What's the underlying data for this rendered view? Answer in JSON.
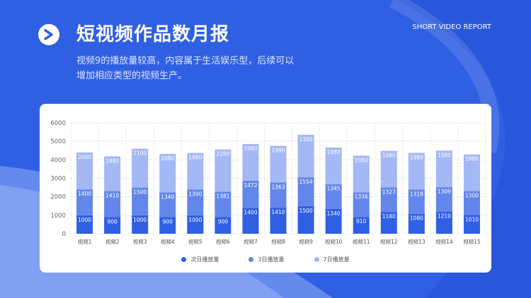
{
  "header": {
    "title": "短视频作品数月报",
    "subtitle_en": "SHORT VIDEO REPORT",
    "description_line1": "视频9的播放量较高，内容属于生活娱乐型，后续可以",
    "description_line2": "增加相应类型的视频生产。"
  },
  "icons": {
    "logo": "play-arrow-icon"
  },
  "colors": {
    "background": "#2f5fe3",
    "series_day1": "#2f5fe3",
    "series_day3": "#6386ea",
    "series_day7": "#a3b8f4"
  },
  "chart_data": {
    "type": "bar",
    "stacked": true,
    "categories": [
      "视频1",
      "视频2",
      "视频3",
      "视频4",
      "视频5",
      "视频6",
      "视频7",
      "视频8",
      "视频9",
      "视频10",
      "视频11",
      "视频12",
      "视频13",
      "视频14",
      "视频15"
    ],
    "series": [
      {
        "name": "次日播放量",
        "color": "#2f5fe3",
        "values": [
          1000,
          900,
          1000,
          900,
          1000,
          900,
          1400,
          1410,
          1500,
          1340,
          910,
          1180,
          1080,
          1210,
          1010
        ]
      },
      {
        "name": "3日播放量",
        "color": "#6386ea",
        "values": [
          1400,
          1410,
          1500,
          1340,
          1390,
          1381,
          1472,
          1363,
          1554,
          1345,
          1336,
          1327,
          1318,
          1309,
          1300
        ]
      },
      {
        "name": "7日播放量",
        "color": "#a3b8f4",
        "values": [
          2000,
          1880,
          2100,
          2080,
          1980,
          2280,
          1980,
          1980,
          2300,
          1980,
          1980,
          1980,
          1980,
          1980,
          1980
        ]
      }
    ],
    "yticks": [
      "0",
      "1000",
      "2000",
      "3000",
      "4000",
      "5000",
      "6000"
    ],
    "ylim": [
      0,
      6000
    ],
    "grid": true,
    "legend_position": "bottom"
  }
}
